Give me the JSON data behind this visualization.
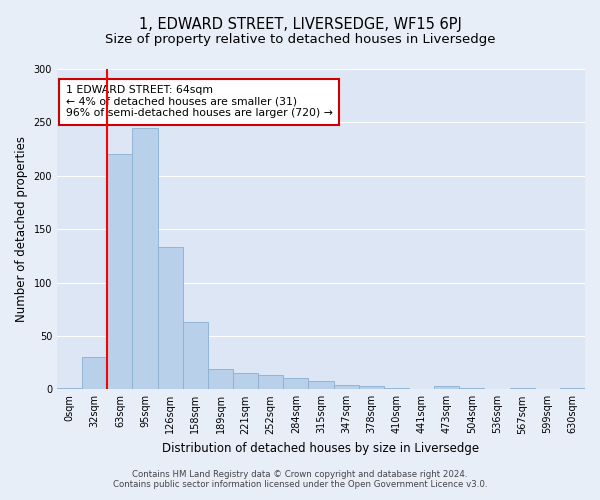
{
  "title": "1, EDWARD STREET, LIVERSEDGE, WF15 6PJ",
  "subtitle": "Size of property relative to detached houses in Liversedge",
  "xlabel": "Distribution of detached houses by size in Liversedge",
  "ylabel": "Number of detached properties",
  "categories": [
    "0sqm",
    "32sqm",
    "63sqm",
    "95sqm",
    "126sqm",
    "158sqm",
    "189sqm",
    "221sqm",
    "252sqm",
    "284sqm",
    "315sqm",
    "347sqm",
    "378sqm",
    "410sqm",
    "441sqm",
    "473sqm",
    "504sqm",
    "536sqm",
    "567sqm",
    "599sqm",
    "630sqm"
  ],
  "values": [
    1,
    30,
    220,
    245,
    133,
    63,
    19,
    15,
    13,
    11,
    8,
    4,
    3,
    1,
    0,
    3,
    1,
    0,
    1,
    0,
    1
  ],
  "bar_color": "#b8d0ea",
  "bar_edge_color": "#8ab0d0",
  "background_color": "#dce6f5",
  "fig_background_color": "#e8eef8",
  "red_line_x": 2.0,
  "annotation_text": "1 EDWARD STREET: 64sqm\n← 4% of detached houses are smaller (31)\n96% of semi-detached houses are larger (720) →",
  "annotation_box_color": "#ffffff",
  "annotation_box_edge_color": "#cc0000",
  "footer_line1": "Contains HM Land Registry data © Crown copyright and database right 2024.",
  "footer_line2": "Contains public sector information licensed under the Open Government Licence v3.0.",
  "ylim": [
    0,
    300
  ],
  "yticks": [
    0,
    50,
    100,
    150,
    200,
    250,
    300
  ],
  "grid_color": "#ffffff",
  "title_fontsize": 10.5,
  "subtitle_fontsize": 9.5,
  "tick_fontsize": 7,
  "ylabel_fontsize": 8.5,
  "xlabel_fontsize": 8.5,
  "footer_fontsize": 6.2
}
